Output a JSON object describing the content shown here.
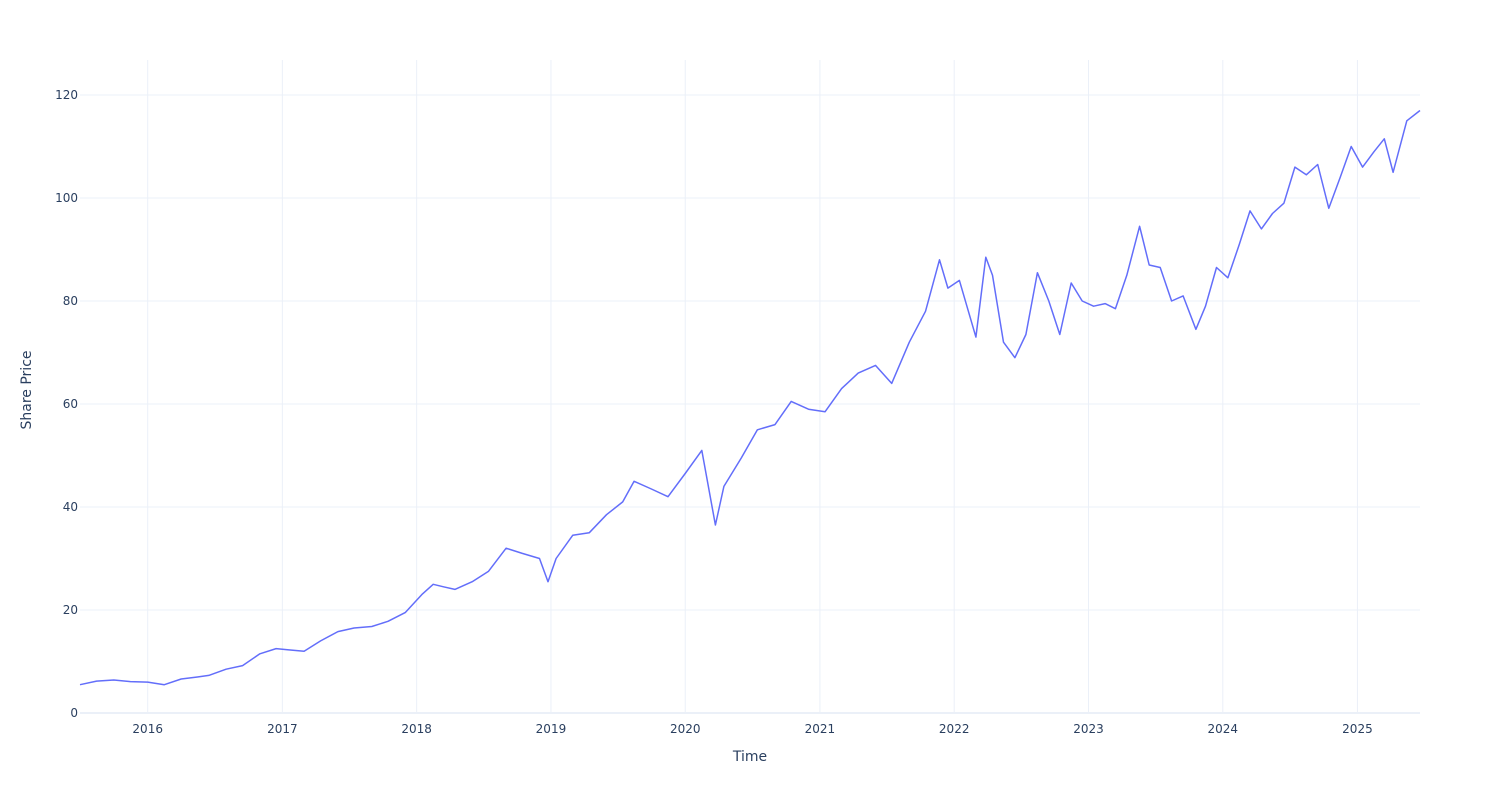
{
  "chart_data": {
    "type": "line",
    "title": "",
    "xlabel": "Time",
    "ylabel": "Share Price",
    "x_range": [
      "2015-07-01",
      "2025-06-20"
    ],
    "ylim": [
      0,
      126.8
    ],
    "x_ticks": [
      {
        "date": "2016-01-01",
        "label": "2016"
      },
      {
        "date": "2017-01-01",
        "label": "2017"
      },
      {
        "date": "2018-01-01",
        "label": "2018"
      },
      {
        "date": "2019-01-01",
        "label": "2019"
      },
      {
        "date": "2020-01-01",
        "label": "2020"
      },
      {
        "date": "2021-01-01",
        "label": "2021"
      },
      {
        "date": "2022-01-01",
        "label": "2022"
      },
      {
        "date": "2023-01-01",
        "label": "2023"
      },
      {
        "date": "2024-01-01",
        "label": "2024"
      },
      {
        "date": "2025-01-01",
        "label": "2025"
      }
    ],
    "y_ticks": [
      {
        "value": 0,
        "label": "0"
      },
      {
        "value": 20,
        "label": "20"
      },
      {
        "value": 40,
        "label": "40"
      },
      {
        "value": 60,
        "label": "60"
      },
      {
        "value": 80,
        "label": "80"
      },
      {
        "value": 100,
        "label": "100"
      },
      {
        "value": 120,
        "label": "120"
      }
    ],
    "grid": true,
    "line_color": "#636efa",
    "series": [
      {
        "x": [
          "2015-07-01",
          "2015-08-15",
          "2015-10-01",
          "2015-11-15",
          "2016-01-01",
          "2016-02-15",
          "2016-04-01",
          "2016-05-15",
          "2016-06-15",
          "2016-08-01",
          "2016-09-15",
          "2016-11-01",
          "2016-12-15",
          "2017-01-15",
          "2017-03-01",
          "2017-04-15",
          "2017-06-01",
          "2017-07-15",
          "2017-09-01",
          "2017-10-15",
          "2017-12-01",
          "2018-01-15",
          "2018-02-15",
          "2018-03-15",
          "2018-04-15",
          "2018-06-01",
          "2018-07-15",
          "2018-09-01",
          "2018-10-15",
          "2018-12-01",
          "2018-12-24",
          "2019-01-15",
          "2019-03-01",
          "2019-04-15",
          "2019-06-01",
          "2019-07-15",
          "2019-08-15",
          "2019-10-01",
          "2019-11-15",
          "2020-01-01",
          "2020-02-15",
          "2020-03-23",
          "2020-04-15",
          "2020-06-01",
          "2020-07-15",
          "2020-09-01",
          "2020-10-15",
          "2020-12-01",
          "2021-01-15",
          "2021-03-01",
          "2021-04-15",
          "2021-06-01",
          "2021-07-15",
          "2021-09-01",
          "2021-10-15",
          "2021-11-22",
          "2021-12-15",
          "2022-01-15",
          "2022-03-01",
          "2022-03-28",
          "2022-04-15",
          "2022-05-15",
          "2022-06-15",
          "2022-07-15",
          "2022-08-15",
          "2022-09-15",
          "2022-10-15",
          "2022-11-15",
          "2022-12-15",
          "2023-01-15",
          "2023-02-15",
          "2023-03-15",
          "2023-04-15",
          "2023-05-20",
          "2023-06-15",
          "2023-07-15",
          "2023-08-15",
          "2023-09-15",
          "2023-10-20",
          "2023-11-15",
          "2023-12-15",
          "2024-01-15",
          "2024-02-15",
          "2024-03-15",
          "2024-04-15",
          "2024-05-15",
          "2024-06-15",
          "2024-07-15",
          "2024-08-15",
          "2024-09-15",
          "2024-10-15",
          "2024-11-15",
          "2024-12-15",
          "2025-01-15",
          "2025-02-15",
          "2025-03-15",
          "2025-04-08",
          "2025-05-15",
          "2025-06-20"
        ],
        "values": [
          5.5,
          6.2,
          6.4,
          6.1,
          6.0,
          5.5,
          6.6,
          7.0,
          7.3,
          8.5,
          9.2,
          11.5,
          12.5,
          12.3,
          12.0,
          14.0,
          15.8,
          16.5,
          16.8,
          17.8,
          19.5,
          23.0,
          25.0,
          24.5,
          24.0,
          25.5,
          27.5,
          32.0,
          31.0,
          30.0,
          25.5,
          30.0,
          34.5,
          35.0,
          38.5,
          41.0,
          45.0,
          43.5,
          42.0,
          46.5,
          51.0,
          36.5,
          44.0,
          49.5,
          55.0,
          56.0,
          60.5,
          59.0,
          58.5,
          63.0,
          66.0,
          67.5,
          64.0,
          72.0,
          78.0,
          88.0,
          82.5,
          84.0,
          73.0,
          88.5,
          85.0,
          72.0,
          69.0,
          73.5,
          85.5,
          80.0,
          73.5,
          83.5,
          80.0,
          79.0,
          79.5,
          78.5,
          85.0,
          94.5,
          87.0,
          86.5,
          80.0,
          81.0,
          74.5,
          79.0,
          86.5,
          84.5,
          91.0,
          97.5,
          94.0,
          97.0,
          99.0,
          106.0,
          104.5,
          106.5,
          98.0,
          104.0,
          110.0,
          106.0,
          109.0,
          111.5,
          105.0,
          115.0,
          117.0
        ]
      }
    ]
  }
}
